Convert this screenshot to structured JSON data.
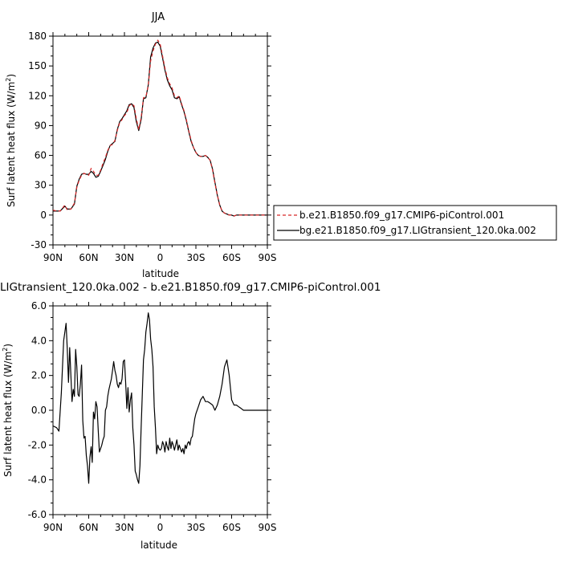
{
  "chart_data": [
    {
      "type": "line",
      "title": "JJA",
      "xlabel": "latitude",
      "ylabel": "Surf latent heat flux (W/m",
      "ylabel_sup": "2",
      "ylabel_tail": ")",
      "xlim": [
        90,
        -90
      ],
      "ylim": [
        -30,
        180
      ],
      "xticks": [
        90,
        60,
        30,
        0,
        -30,
        -60,
        -90
      ],
      "xtick_labels": [
        "90N",
        "60N",
        "30N",
        "0",
        "30S",
        "60S",
        "90S"
      ],
      "yticks": [
        -30,
        0,
        30,
        60,
        90,
        120,
        150,
        180
      ],
      "ytick_labels": [
        "-30",
        "0",
        "30",
        "60",
        "90",
        "120",
        "150",
        "180"
      ],
      "legend_position": "right",
      "series": [
        {
          "name": "b.e21.B1850.f09_g17.CMIP6-piControl.001",
          "color": "#d62728",
          "dash": "dashed",
          "x": [
            90,
            87,
            84,
            80,
            78,
            75,
            72,
            70,
            68,
            66,
            64,
            62,
            60,
            58,
            56,
            54,
            52,
            50,
            48,
            46,
            44,
            42,
            40,
            38,
            36,
            34,
            32,
            30,
            28,
            26,
            24,
            22,
            20,
            18,
            16,
            14,
            12,
            10,
            8,
            6,
            4,
            2,
            0,
            -2,
            -4,
            -6,
            -8,
            -10,
            -12,
            -14,
            -16,
            -18,
            -20,
            -22,
            -24,
            -26,
            -28,
            -30,
            -32,
            -34,
            -36,
            -38,
            -40,
            -42,
            -44,
            -46,
            -48,
            -50,
            -52,
            -54,
            -56,
            -58,
            -60,
            -62,
            -64,
            -66,
            -68,
            -70,
            -72,
            -75,
            -80,
            -85,
            -90
          ],
          "y": [
            5,
            4,
            4,
            10,
            5,
            6,
            12,
            28,
            35,
            40,
            42,
            41,
            40,
            47,
            44,
            40,
            40,
            45,
            52,
            58,
            65,
            70,
            71,
            75,
            85,
            93,
            96,
            100,
            103,
            110,
            112,
            110,
            97,
            86,
            98,
            118,
            119,
            130,
            155,
            165,
            172,
            176,
            172,
            160,
            148,
            138,
            132,
            128,
            120,
            118,
            120,
            112,
            105,
            96,
            85,
            75,
            68,
            63,
            60,
            59,
            59,
            60,
            58,
            55,
            45,
            32,
            20,
            10,
            4,
            2,
            1,
            0,
            0,
            -1,
            0,
            0,
            0,
            0,
            0,
            0,
            0,
            0,
            0
          ]
        },
        {
          "name": "bg.e21.B1850.f09_g17.LIGtransient_120.0ka.002",
          "color": "#000000",
          "dash": "solid",
          "x": [
            90,
            87,
            84,
            80,
            78,
            75,
            72,
            70,
            68,
            66,
            64,
            62,
            60,
            58,
            56,
            54,
            52,
            50,
            48,
            46,
            44,
            42,
            40,
            38,
            36,
            34,
            32,
            30,
            28,
            26,
            24,
            22,
            20,
            18,
            16,
            14,
            12,
            10,
            8,
            6,
            4,
            2,
            0,
            -2,
            -4,
            -6,
            -8,
            -10,
            -12,
            -14,
            -16,
            -18,
            -20,
            -22,
            -24,
            -26,
            -28,
            -30,
            -32,
            -34,
            -36,
            -38,
            -40,
            -42,
            -44,
            -46,
            -48,
            -50,
            -52,
            -54,
            -56,
            -58,
            -60,
            -62,
            -64,
            -66,
            -68,
            -70,
            -72,
            -75,
            -80,
            -85,
            -90
          ],
          "y": [
            4,
            4,
            4,
            9,
            6,
            6,
            11,
            29,
            36,
            41,
            42,
            41,
            41,
            44,
            42,
            38,
            39,
            44,
            50,
            56,
            64,
            70,
            72,
            74,
            86,
            94,
            97,
            101,
            105,
            111,
            112,
            108,
            94,
            85,
            96,
            117,
            118,
            131,
            159,
            168,
            173,
            174,
            170,
            158,
            146,
            136,
            130,
            126,
            118,
            117,
            119,
            111,
            104,
            95,
            84,
            74,
            68,
            63,
            60,
            59,
            59,
            60,
            58,
            55,
            46,
            33,
            20,
            10,
            4,
            2,
            1,
            0,
            0,
            -1,
            0,
            0,
            0,
            0,
            0,
            0,
            0,
            0,
            0
          ]
        }
      ]
    },
    {
      "type": "line",
      "title": "LIGtransient_120.0ka.002 - b.e21.B1850.f09_g17.CMIP6-piControl.001",
      "xlabel": "latitude",
      "ylabel": "Surf latent heat flux (W/m",
      "ylabel_sup": "2",
      "ylabel_tail": ")",
      "xlim": [
        90,
        -90
      ],
      "ylim": [
        -6,
        6
      ],
      "xticks": [
        90,
        60,
        30,
        0,
        -30,
        -60,
        -90
      ],
      "xtick_labels": [
        "90N",
        "60N",
        "30N",
        "0",
        "30S",
        "60S",
        "90S"
      ],
      "yticks": [
        -6,
        -4,
        -2,
        0,
        2,
        4,
        6
      ],
      "ytick_labels": [
        "-6.0",
        "-4.0",
        "-2.0",
        "0.0",
        "2.0",
        "4.0",
        "6.0"
      ],
      "series": [
        {
          "color": "#000000",
          "x": [
            90,
            87,
            85,
            83,
            81,
            79,
            78,
            77,
            76,
            75,
            74,
            73,
            72,
            71,
            70,
            69,
            68,
            67,
            66,
            65,
            64,
            63,
            62,
            61,
            60,
            59,
            58,
            57,
            56,
            55,
            54,
            53,
            52,
            51,
            50,
            49,
            48,
            47,
            46,
            45,
            44,
            43,
            42,
            41,
            40,
            39,
            38,
            37,
            36,
            35,
            34,
            33,
            32,
            31,
            30,
            29,
            28,
            27,
            26,
            25,
            24,
            23,
            22,
            21,
            20,
            19,
            18,
            17,
            16,
            15,
            14,
            13,
            12,
            11,
            10,
            9,
            8,
            7,
            6,
            5,
            4,
            3,
            2,
            1,
            0,
            -1,
            -2,
            -3,
            -4,
            -5,
            -6,
            -7,
            -8,
            -9,
            -10,
            -11,
            -12,
            -13,
            -14,
            -15,
            -16,
            -17,
            -18,
            -19,
            -20,
            -21,
            -22,
            -23,
            -24,
            -25,
            -26,
            -27,
            -28,
            -29,
            -30,
            -32,
            -34,
            -36,
            -38,
            -40,
            -42,
            -44,
            -46,
            -48,
            -50,
            -52,
            -54,
            -56,
            -58,
            -60,
            -62,
            -64,
            -66,
            -68,
            -70,
            -72,
            -74,
            -76,
            -78,
            -80,
            -82,
            -84,
            -86,
            -88,
            -90
          ],
          "y": [
            -0.9,
            -1.0,
            -1.2,
            1.0,
            4.0,
            5.0,
            3.5,
            1.6,
            3.6,
            2.0,
            0.5,
            1.2,
            0.8,
            3.5,
            2.5,
            0.9,
            0.8,
            1.5,
            2.6,
            -0.6,
            -1.6,
            -1.5,
            -2.6,
            -3.2,
            -4.2,
            -2.7,
            -2.1,
            -3.0,
            -0.1,
            -0.5,
            0.5,
            0.2,
            -1.2,
            -2.4,
            -2.2,
            -2.0,
            -1.7,
            -1.5,
            0.0,
            0.2,
            0.8,
            1.2,
            1.5,
            1.8,
            2.3,
            2.8,
            2.3,
            2.0,
            1.5,
            1.3,
            1.6,
            1.5,
            1.8,
            2.8,
            2.9,
            1.6,
            0.1,
            1.3,
            -0.1,
            0.6,
            1.0,
            -1.0,
            -2.0,
            -3.5,
            -3.7,
            -4.0,
            -4.2,
            -3.2,
            -1.0,
            1.0,
            2.9,
            3.5,
            4.5,
            5.0,
            5.6,
            5.2,
            4.1,
            3.5,
            2.5,
            0.2,
            -1.0,
            -2.5,
            -2.0,
            -2.2,
            -2.3,
            -2.2,
            -1.8,
            -2.0,
            -2.4,
            -1.8,
            -2.1,
            -2.3,
            -1.6,
            -2.2,
            -1.8,
            -2.0,
            -2.3,
            -2.0,
            -1.7,
            -2.3,
            -2.0,
            -2.2,
            -2.4,
            -2.2,
            -2.5,
            -2.0,
            -2.2,
            -1.9,
            -1.8,
            -2.0,
            -1.6,
            -1.5,
            -1.0,
            -0.5,
            -0.2,
            0.2,
            0.6,
            0.8,
            0.5,
            0.5,
            0.4,
            0.3,
            0.0,
            0.3,
            0.8,
            1.5,
            2.5,
            2.9,
            2.0,
            0.6,
            0.3,
            0.3,
            0.2,
            0.1,
            0.0,
            0.0,
            0.0,
            0.0,
            0.0,
            0.0,
            0.0,
            0.0,
            0.0,
            0.0,
            0.0
          ]
        }
      ]
    }
  ]
}
